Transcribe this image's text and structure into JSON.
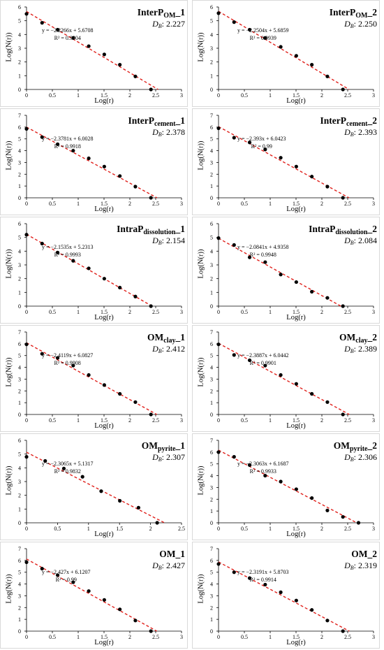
{
  "chart_data": [
    {
      "type": "scatter",
      "title_main": "InterP",
      "title_sub": "OM",
      "title_suffix": "_1",
      "db_label": "D",
      "db_sub": "B",
      "db_value": ": 2.227",
      "equation": "y = −2.2266x + 5.6708",
      "r2": "R² = 0.9904",
      "xlabel": "Log(r)",
      "ylabel": "Log(N(r))",
      "xlim": [
        0,
        3
      ],
      "ylim": [
        0,
        6
      ],
      "x_ticks": [
        "0",
        "0.5",
        "1",
        "1.5",
        "2",
        "2.5",
        "3"
      ],
      "y_ticks": [
        "0",
        "1",
        "2",
        "3",
        "4",
        "5",
        "6"
      ],
      "x": [
        0,
        0.301,
        0.602,
        0.903,
        1.204,
        1.505,
        1.806,
        2.107,
        2.408
      ],
      "y": [
        5.5,
        4.85,
        4.35,
        3.75,
        3.15,
        2.55,
        1.8,
        0.95,
        0.0
      ],
      "fit": {
        "slope": -2.2266,
        "intercept": 5.6708
      }
    },
    {
      "type": "scatter",
      "title_main": "InterP",
      "title_sub": "OM",
      "title_suffix": "_2",
      "db_label": "D",
      "db_sub": "B",
      "db_value": ": 2.250",
      "equation": "y = −2.2504x + 5.6859",
      "r2": "R² = 0.9939",
      "xlabel": "Log(r)",
      "ylabel": "Log(N(r))",
      "xlim": [
        0,
        3
      ],
      "ylim": [
        0,
        6
      ],
      "x_ticks": [
        "0",
        "0.5",
        "1",
        "1.5",
        "2",
        "2.5",
        "3"
      ],
      "y_ticks": [
        "0",
        "1",
        "2",
        "3",
        "4",
        "5",
        "6"
      ],
      "x": [
        0,
        0.301,
        0.602,
        0.903,
        1.204,
        1.505,
        1.806,
        2.107,
        2.408
      ],
      "y": [
        5.55,
        4.9,
        4.35,
        3.75,
        3.1,
        2.45,
        1.8,
        0.95,
        0.0
      ],
      "fit": {
        "slope": -2.2504,
        "intercept": 5.6859
      }
    },
    {
      "type": "scatter",
      "title_main": "InterP",
      "title_sub": "cement",
      "title_suffix": "_1",
      "db_label": "D",
      "db_sub": "B",
      "db_value": ": 2.378",
      "equation": "y = −2.3781x + 6.0028",
      "r2": "R² = 0.9918",
      "xlabel": "Log(r)",
      "ylabel": "Log(N(r))",
      "xlim": [
        0,
        3
      ],
      "ylim": [
        0,
        7
      ],
      "x_ticks": [
        "0",
        "0.5",
        "1",
        "1.5",
        "2",
        "2.5",
        "3"
      ],
      "y_ticks": [
        "0",
        "1",
        "2",
        "3",
        "4",
        "5",
        "6",
        "7"
      ],
      "x": [
        0,
        0.301,
        0.602,
        0.903,
        1.204,
        1.505,
        1.806,
        2.107,
        2.408
      ],
      "y": [
        5.85,
        5.15,
        4.55,
        4.0,
        3.35,
        2.65,
        1.85,
        0.95,
        0.0
      ],
      "fit": {
        "slope": -2.3781,
        "intercept": 6.0028
      }
    },
    {
      "type": "scatter",
      "title_main": "InterP",
      "title_sub": "cement",
      "title_suffix": "_2",
      "db_label": "D",
      "db_sub": "B",
      "db_value": ": 2.393",
      "equation": "y = −2.393x + 6.0423",
      "r2": "R² = 0.99",
      "xlabel": "Log(r)",
      "ylabel": "Log(N(r))",
      "xlim": [
        0,
        3
      ],
      "ylim": [
        0,
        7
      ],
      "x_ticks": [
        "0",
        "0.5",
        "1",
        "1.5",
        "2",
        "2.5",
        "3"
      ],
      "y_ticks": [
        "0",
        "1",
        "2",
        "3",
        "4",
        "5",
        "6",
        "7"
      ],
      "x": [
        0,
        0.301,
        0.602,
        0.903,
        1.204,
        1.505,
        1.806,
        2.107,
        2.408
      ],
      "y": [
        5.9,
        5.1,
        4.7,
        4.1,
        3.4,
        2.65,
        1.8,
        0.95,
        0.0
      ],
      "fit": {
        "slope": -2.393,
        "intercept": 6.0423
      }
    },
    {
      "type": "scatter",
      "title_main": "IntraP",
      "title_sub": "dissolution",
      "title_suffix": "_1",
      "db_label": "D",
      "db_sub": "B",
      "db_value": ": 2.154",
      "equation": "y = −2.1535x + 5.2313",
      "r2": "R² = 0.9993",
      "xlabel": "Log(r)",
      "ylabel": "Log(N(r))",
      "xlim": [
        0,
        3
      ],
      "ylim": [
        0,
        6
      ],
      "x_ticks": [
        "0",
        "0.5",
        "1",
        "1.5",
        "2",
        "2.5",
        "3"
      ],
      "y_ticks": [
        "0",
        "1",
        "2",
        "3",
        "4",
        "5",
        "6"
      ],
      "x": [
        0,
        0.301,
        0.602,
        0.903,
        1.204,
        1.505,
        1.806,
        2.107,
        2.408
      ],
      "y": [
        5.2,
        4.55,
        3.9,
        3.3,
        2.75,
        2.0,
        1.35,
        0.7,
        0.0
      ],
      "fit": {
        "slope": -2.1535,
        "intercept": 5.2313
      }
    },
    {
      "type": "scatter",
      "title_main": "IntraP",
      "title_sub": "dissolution",
      "title_suffix": "_2",
      "db_label": "D",
      "db_sub": "B",
      "db_value": ": 2.084",
      "equation": "y = −2.0841x + 4.9358",
      "r2": "R² = 0.9948",
      "xlabel": "Log(r)",
      "ylabel": "Log(N(r))",
      "xlim": [
        0,
        3
      ],
      "ylim": [
        0,
        6
      ],
      "x_ticks": [
        "0",
        "0.5",
        "1",
        "1.5",
        "2",
        "2.5",
        "3"
      ],
      "y_ticks": [
        "0",
        "1",
        "2",
        "3",
        "4",
        "5",
        "6"
      ],
      "x": [
        0,
        0.301,
        0.602,
        0.903,
        1.204,
        1.505,
        1.806,
        2.107,
        2.408
      ],
      "y": [
        4.95,
        4.45,
        3.55,
        3.2,
        2.3,
        1.75,
        1.05,
        0.6,
        0.0
      ],
      "fit": {
        "slope": -2.0841,
        "intercept": 4.9358
      }
    },
    {
      "type": "scatter",
      "title_main": "OM",
      "title_sub": "clay",
      "title_suffix": "_1",
      "db_label": "D",
      "db_sub": "B",
      "db_value": ": 2.412",
      "equation": "y = −2.4119x + 6.0827",
      "r2": "R² = 0.9908",
      "xlabel": "Log(r)",
      "ylabel": "Log(N(r))",
      "xlim": [
        0,
        3
      ],
      "ylim": [
        0,
        7
      ],
      "x_ticks": [
        "0",
        "0.5",
        "1",
        "1.5",
        "2",
        "2.5",
        "3"
      ],
      "y_ticks": [
        "0",
        "1",
        "2",
        "3",
        "4",
        "5",
        "6",
        "7"
      ],
      "x": [
        0,
        0.301,
        0.602,
        0.903,
        1.204,
        1.505,
        1.806,
        2.107,
        2.408
      ],
      "y": [
        5.95,
        5.15,
        4.8,
        4.15,
        3.35,
        2.5,
        1.75,
        1.05,
        0.0
      ],
      "fit": {
        "slope": -2.4119,
        "intercept": 6.0827
      }
    },
    {
      "type": "scatter",
      "title_main": "OM",
      "title_sub": "clay",
      "title_suffix": "_2",
      "db_label": "D",
      "db_sub": "B",
      "db_value": ": 2.389",
      "equation": "y = −2.3887x + 6.0442",
      "r2": "R² = 0.9901",
      "xlabel": "Log(r)",
      "ylabel": "Log(N(r))",
      "xlim": [
        0,
        3
      ],
      "ylim": [
        0,
        7
      ],
      "x_ticks": [
        "0",
        "0.5",
        "1",
        "1.5",
        "2",
        "2.5",
        "3"
      ],
      "y_ticks": [
        "0",
        "1",
        "2",
        "3",
        "4",
        "5",
        "6",
        "7"
      ],
      "x": [
        0,
        0.301,
        0.602,
        0.903,
        1.204,
        1.505,
        1.806,
        2.107,
        2.408
      ],
      "y": [
        5.95,
        5.05,
        4.6,
        4.15,
        3.35,
        2.6,
        1.75,
        1.05,
        0.0
      ],
      "fit": {
        "slope": -2.3887,
        "intercept": 6.0442
      }
    },
    {
      "type": "scatter",
      "title_main": "OM",
      "title_sub": "pyrite",
      "title_suffix": "_1",
      "db_label": "D",
      "db_sub": "B",
      "db_value": ": 2.307",
      "equation": "y = −2.3065x + 5.1317",
      "r2": "R² = 0.9832",
      "xlabel": "Log(r)",
      "ylabel": "Log(N(r))",
      "xlim": [
        0,
        2.5
      ],
      "ylim": [
        0,
        6
      ],
      "x_ticks": [
        "0",
        "0.5",
        "1",
        "1.5",
        "2",
        "2.5"
      ],
      "y_ticks": [
        "0",
        "1",
        "2",
        "3",
        "4",
        "5",
        "6"
      ],
      "x": [
        0,
        0.301,
        0.602,
        0.903,
        1.204,
        1.505,
        1.806,
        2.107
      ],
      "y": [
        4.8,
        4.5,
        3.95,
        3.35,
        2.3,
        1.6,
        1.1,
        0.0
      ],
      "fit": {
        "slope": -2.3065,
        "intercept": 5.1317
      }
    },
    {
      "type": "scatter",
      "title_main": "OM",
      "title_sub": "pyrite",
      "title_suffix": "_2",
      "db_label": "D",
      "db_sub": "B",
      "db_value": ": 2.306",
      "equation": "y = −2.3063x + 6.1687",
      "r2": "R² = 0.9933",
      "xlabel": "Log(r)",
      "ylabel": "Log(N(r))",
      "xlim": [
        0,
        3
      ],
      "ylim": [
        0,
        7
      ],
      "x_ticks": [
        "0",
        "0.5",
        "1",
        "1.5",
        "2",
        "2.5",
        "3"
      ],
      "y_ticks": [
        "0",
        "1",
        "2",
        "3",
        "4",
        "5",
        "6",
        "7"
      ],
      "x": [
        0,
        0.301,
        0.602,
        0.903,
        1.204,
        1.505,
        1.806,
        2.107,
        2.408,
        2.709
      ],
      "y": [
        6.0,
        5.6,
        4.9,
        4.0,
        3.5,
        2.85,
        2.1,
        1.05,
        0.5,
        0.0
      ],
      "fit": {
        "slope": -2.3063,
        "intercept": 6.1687
      }
    },
    {
      "type": "scatter",
      "title_main": "OM",
      "title_sub": "",
      "title_suffix": "_1",
      "db_label": "D",
      "db_sub": "B",
      "db_value": ": 2.427",
      "equation": "y = −2.427x + 6.1207",
      "r2": "R² = 0.99",
      "xlabel": "Log(r)",
      "ylabel": "Log(N(r))",
      "xlim": [
        0,
        3
      ],
      "ylim": [
        0,
        7
      ],
      "x_ticks": [
        "0",
        "0.5",
        "1",
        "1.5",
        "2",
        "2.5",
        "3"
      ],
      "y_ticks": [
        "0",
        "1",
        "2",
        "3",
        "4",
        "5",
        "6",
        "7"
      ],
      "x": [
        0,
        0.301,
        0.602,
        0.903,
        1.204,
        1.505,
        1.806,
        2.107,
        2.408
      ],
      "y": [
        5.85,
        5.3,
        4.75,
        4.15,
        3.4,
        2.65,
        1.85,
        0.9,
        0.0
      ],
      "fit": {
        "slope": -2.427,
        "intercept": 6.1207
      }
    },
    {
      "type": "scatter",
      "title_main": "OM",
      "title_sub": "",
      "title_suffix": "_2",
      "db_label": "D",
      "db_sub": "B",
      "db_value": ": 2.319",
      "equation": "y = −2.3191x + 5.8703",
      "r2": "R² = 0.9914",
      "xlabel": "Log(r)",
      "ylabel": "Log(N(r))",
      "xlim": [
        0,
        3
      ],
      "ylim": [
        0,
        7
      ],
      "x_ticks": [
        "0",
        "0.5",
        "1",
        "1.5",
        "2",
        "2.5",
        "3"
      ],
      "y_ticks": [
        "0",
        "1",
        "2",
        "3",
        "4",
        "5",
        "6",
        "7"
      ],
      "x": [
        0,
        0.301,
        0.602,
        0.903,
        1.204,
        1.505,
        1.806,
        2.107,
        2.408
      ],
      "y": [
        5.7,
        5.0,
        4.5,
        3.95,
        3.3,
        2.6,
        1.8,
        0.9,
        0.0
      ],
      "fit": {
        "slope": -2.3191,
        "intercept": 5.8703
      }
    }
  ]
}
